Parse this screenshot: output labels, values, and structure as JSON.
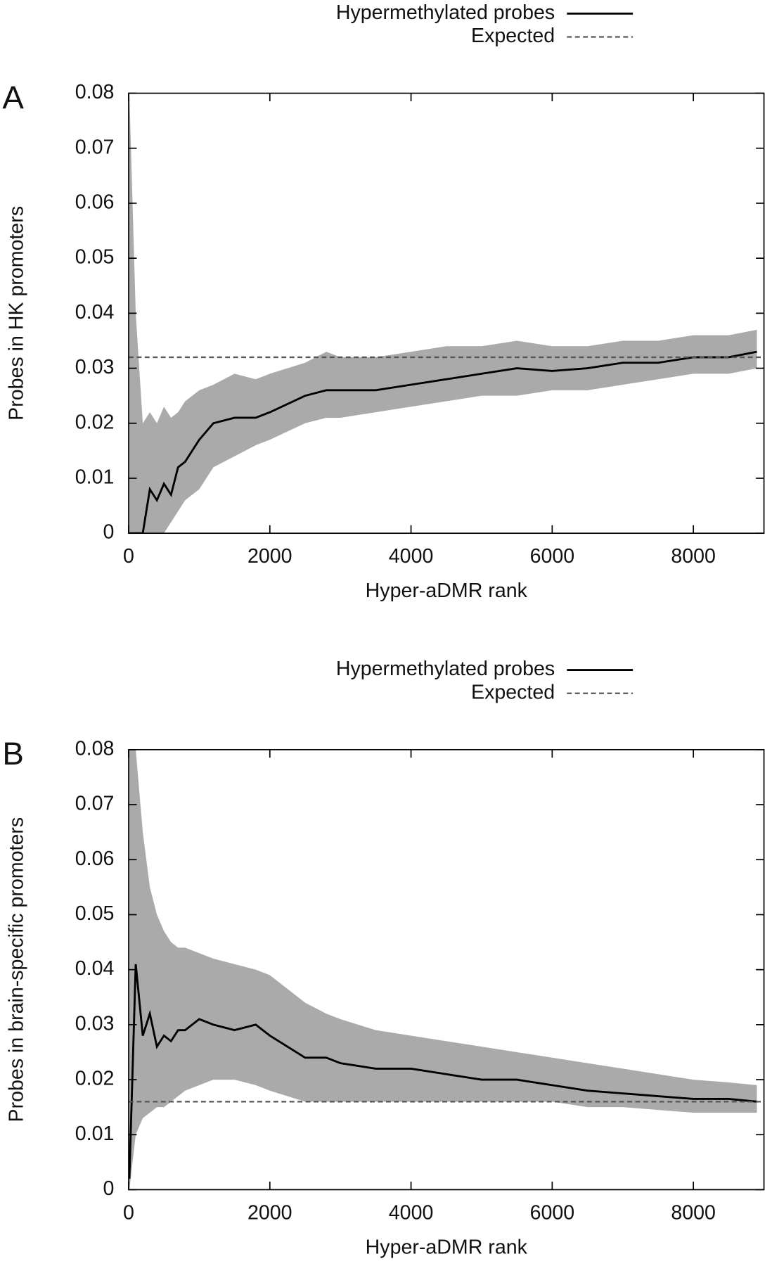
{
  "chart_data": [
    {
      "type": "line",
      "panel": "A",
      "xlabel": "Hyper-aDMR rank",
      "ylabel": "Probes in HK promoters",
      "x": [
        10,
        100,
        200,
        300,
        400,
        500,
        600,
        700,
        800,
        1000,
        1200,
        1500,
        1800,
        2000,
        2500,
        2800,
        3000,
        3500,
        4000,
        4500,
        5000,
        5500,
        6000,
        6500,
        7000,
        7500,
        8000,
        8500,
        8900
      ],
      "series": [
        {
          "name": "Hypermethylated probes",
          "color": "#000000",
          "values": [
            0,
            0,
            0,
            0.008,
            0.006,
            0.009,
            0.007,
            0.012,
            0.013,
            0.017,
            0.02,
            0.021,
            0.021,
            0.022,
            0.025,
            0.026,
            0.026,
            0.026,
            0.027,
            0.028,
            0.029,
            0.03,
            0.0295,
            0.03,
            0.031,
            0.031,
            0.032,
            0.032,
            0.033
          ]
        },
        {
          "name": "Expected",
          "color": "#555555",
          "dashed": true,
          "x": [
            0,
            9000
          ],
          "values": [
            0.032,
            0.032
          ]
        }
      ],
      "band": {
        "color": "#aaaaaa",
        "upper": [
          0.08,
          0.04,
          0.02,
          0.022,
          0.02,
          0.023,
          0.021,
          0.022,
          0.024,
          0.026,
          0.027,
          0.029,
          0.028,
          0.029,
          0.031,
          0.033,
          0.032,
          0.032,
          0.033,
          0.034,
          0.034,
          0.035,
          0.034,
          0.034,
          0.035,
          0.035,
          0.036,
          0.036,
          0.037
        ],
        "lower": [
          0,
          0,
          0,
          0,
          0,
          0,
          0.002,
          0.004,
          0.006,
          0.008,
          0.012,
          0.014,
          0.016,
          0.017,
          0.02,
          0.021,
          0.021,
          0.022,
          0.023,
          0.024,
          0.025,
          0.025,
          0.026,
          0.026,
          0.027,
          0.028,
          0.029,
          0.029,
          0.03
        ]
      },
      "xlim": [
        0,
        9000
      ],
      "xticks": [
        0,
        2000,
        4000,
        6000,
        8000
      ],
      "ylim": [
        0,
        0.08
      ],
      "yticks": [
        0,
        0.01,
        0.02,
        0.03,
        0.04,
        0.05,
        0.06,
        0.07,
        0.08
      ]
    },
    {
      "type": "line",
      "panel": "B",
      "xlabel": "Hyper-aDMR rank",
      "ylabel": "Probes in brain-specific promoters",
      "x": [
        10,
        100,
        200,
        300,
        400,
        500,
        600,
        700,
        800,
        1000,
        1200,
        1500,
        1800,
        2000,
        2500,
        2800,
        3000,
        3500,
        4000,
        4500,
        5000,
        5500,
        6000,
        6500,
        7000,
        7500,
        8000,
        8500,
        8900
      ],
      "series": [
        {
          "name": "Hypermethylated probes",
          "color": "#000000",
          "values": [
            0.002,
            0.041,
            0.028,
            0.032,
            0.026,
            0.028,
            0.027,
            0.029,
            0.029,
            0.031,
            0.03,
            0.029,
            0.03,
            0.028,
            0.024,
            0.024,
            0.023,
            0.022,
            0.022,
            0.021,
            0.02,
            0.02,
            0.019,
            0.018,
            0.0175,
            0.017,
            0.0165,
            0.0165,
            0.016
          ]
        },
        {
          "name": "Expected",
          "color": "#555555",
          "dashed": true,
          "x": [
            0,
            9000
          ],
          "values": [
            0.016,
            0.016
          ]
        }
      ],
      "band": {
        "color": "#aaaaaa",
        "upper": [
          0.08,
          0.08,
          0.065,
          0.055,
          0.05,
          0.047,
          0.045,
          0.044,
          0.044,
          0.043,
          0.042,
          0.041,
          0.04,
          0.039,
          0.034,
          0.032,
          0.031,
          0.029,
          0.028,
          0.027,
          0.026,
          0.025,
          0.024,
          0.023,
          0.022,
          0.021,
          0.02,
          0.0195,
          0.019
        ],
        "lower": [
          0,
          0.01,
          0.013,
          0.014,
          0.015,
          0.015,
          0.016,
          0.017,
          0.018,
          0.019,
          0.02,
          0.02,
          0.019,
          0.018,
          0.016,
          0.016,
          0.016,
          0.016,
          0.016,
          0.016,
          0.016,
          0.016,
          0.016,
          0.015,
          0.015,
          0.0145,
          0.014,
          0.014,
          0.014
        ]
      },
      "xlim": [
        0,
        9000
      ],
      "xticks": [
        0,
        2000,
        4000,
        6000,
        8000
      ],
      "ylim": [
        0,
        0.08
      ],
      "yticks": [
        0,
        0.01,
        0.02,
        0.03,
        0.04,
        0.05,
        0.06,
        0.07,
        0.08
      ]
    }
  ]
}
